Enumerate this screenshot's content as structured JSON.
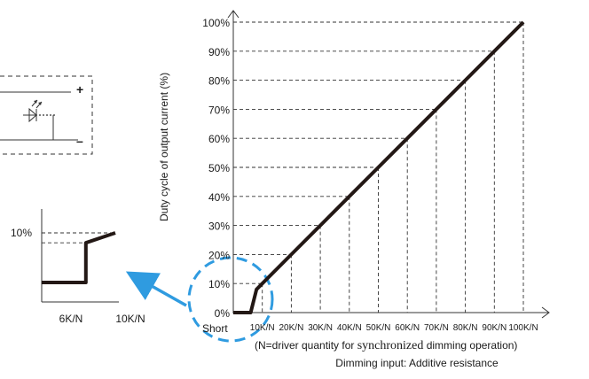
{
  "chart_data": [
    {
      "type": "line",
      "title": "",
      "ylabel": "Duty cycle of output current (%)",
      "xlabel": "Dimming input: Additive resistance",
      "note_prefix": "(N=driver quantity for ",
      "note_serif": "synchronized",
      "note_suffix": " dimming operation)",
      "y_ticks": [
        "0%",
        "10%",
        "20%",
        "30%",
        "40%",
        "50%",
        "60%",
        "70%",
        "80%",
        "90%",
        "100%"
      ],
      "x_ticks": [
        "Short",
        "10K/N",
        "20K/N",
        "30K/N",
        "40K/N",
        "50K/N",
        "60K/N",
        "70K/N",
        "80K/N",
        "90K/N",
        "100K/N"
      ],
      "ylim": [
        0,
        100
      ],
      "series": [
        {
          "x": [
            0,
            6,
            8,
            10,
            20,
            30,
            40,
            50,
            60,
            70,
            80,
            90,
            100
          ],
          "y": [
            0,
            0,
            8,
            10,
            20,
            30,
            40,
            50,
            60,
            70,
            80,
            90,
            100
          ]
        }
      ],
      "grid": "dashed"
    },
    {
      "type": "line",
      "y_ticks": [
        "10%"
      ],
      "x_ticks": [
        "6K/N",
        "10K/N"
      ],
      "series": [
        {
          "x": [
            0,
            6,
            6,
            10
          ],
          "y": [
            0,
            0,
            8,
            10
          ]
        }
      ]
    }
  ],
  "circuit": {
    "plus_label": "+",
    "minus_label": "–"
  },
  "colors": {
    "curve": "#231815",
    "highlight": "#2f9be0",
    "grid": "#333333"
  }
}
